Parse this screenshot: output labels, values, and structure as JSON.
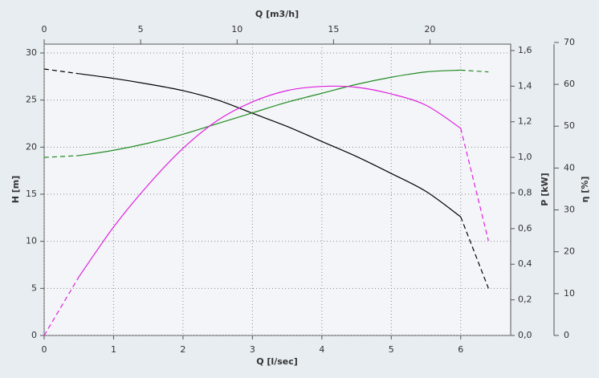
{
  "chart_data": {
    "type": "line",
    "x_label": "Q [l/sec]",
    "x2_label": "Q [m3/h]",
    "y_label": "H [m]",
    "y2_label": "P [kW]",
    "y3_label": "η [%]",
    "x": [
      0,
      0.5,
      1,
      1.5,
      2,
      2.5,
      3,
      3.5,
      4,
      4.5,
      5,
      5.5,
      6,
      6.4
    ],
    "xlim": [
      0,
      6.72
    ],
    "xticks": [
      0,
      1,
      2,
      3,
      4,
      5,
      6
    ],
    "x2lim": [
      0,
      24.18
    ],
    "x2ticks": [
      0,
      5,
      10,
      15,
      20
    ],
    "ylim": [
      0,
      30.94
    ],
    "yticks": [
      0,
      5,
      10,
      15,
      20,
      25,
      30
    ],
    "y2lim": [
      0,
      1.636
    ],
    "y2ticks": [
      {
        "value": 0,
        "label": "0,0"
      },
      {
        "value": 0.2,
        "label": "0,2"
      },
      {
        "value": 0.4,
        "label": "0,4"
      },
      {
        "value": 0.6,
        "label": "0,6"
      },
      {
        "value": 0.8,
        "label": "0,8"
      },
      {
        "value": 1.0,
        "label": "1,0"
      },
      {
        "value": 1.2,
        "label": "1,2"
      },
      {
        "value": 1.4,
        "label": "1,4"
      },
      {
        "value": 1.6,
        "label": "1,6"
      }
    ],
    "y3lim": [
      0,
      69.6
    ],
    "y3ticks": [
      0,
      10,
      20,
      30,
      40,
      50,
      60,
      70
    ],
    "grid": true,
    "series": [
      {
        "color": "#000000",
        "axis": "y",
        "solid_range": [
          0.5,
          6
        ],
        "values": [
          28.3,
          27.8,
          27.3,
          26.7,
          26.0,
          25.0,
          23.6,
          22.2,
          20.6,
          19.0,
          17.2,
          15.3,
          12.6,
          5.0
        ]
      },
      {
        "color": "#228b22",
        "axis": "y2",
        "solid_range": [
          0.5,
          6
        ],
        "values": [
          1.0,
          1.01,
          1.04,
          1.08,
          1.13,
          1.19,
          1.25,
          1.31,
          1.36,
          1.41,
          1.45,
          1.48,
          1.49,
          1.48
        ]
      },
      {
        "color": "#e020e0",
        "axis": "y3",
        "solid_range": [
          0.5,
          6
        ],
        "values": [
          0,
          14.0,
          25.9,
          36.0,
          44.7,
          51.4,
          55.8,
          58.5,
          59.5,
          59.3,
          57.7,
          55.0,
          49.5,
          22.6
        ]
      }
    ]
  }
}
